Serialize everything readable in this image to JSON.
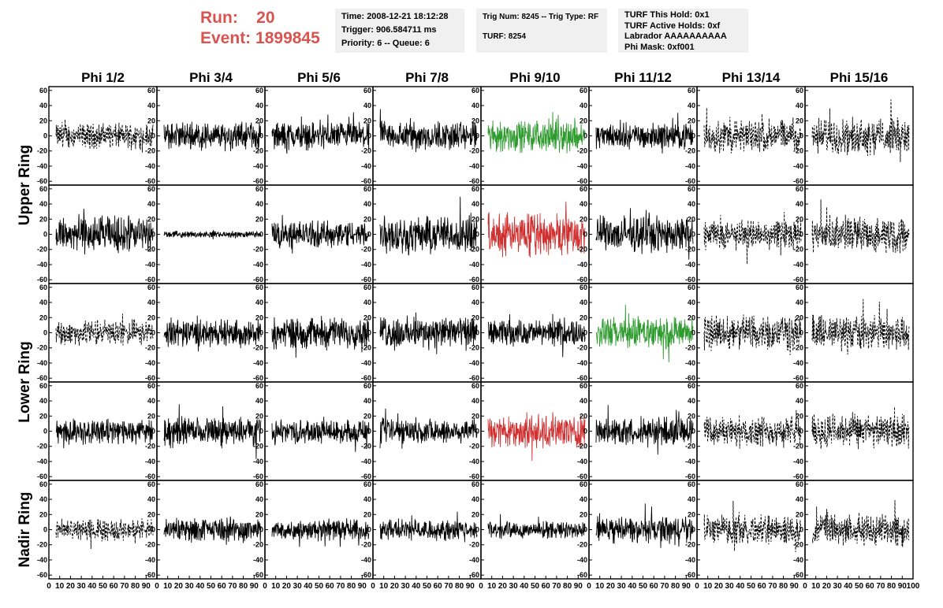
{
  "header": {
    "run_label": "Run:",
    "run_value": "20",
    "event_label": "Event:",
    "event_value": "1899845",
    "time": "Time: 2008-12-21 18:12:28",
    "trigger": "Trigger: 906.584711 ms",
    "priority": "Priority: 6 -- Queue: 6",
    "trig_num": "Trig Num: 8245 -- Trig Type: RF",
    "turf": "TURF: 8254",
    "turf_hold": "TURF This Hold: 0x1",
    "turf_active": "TURF Active Holds: 0xf",
    "labrador": "Labrador AAAAAAAAAA",
    "phi_mask": "Phi Mask: 0xf001"
  },
  "chart_data": {
    "type": "line",
    "columns": [
      "Phi 1/2",
      "Phi 3/4",
      "Phi 5/6",
      "Phi 7/8",
      "Phi 9/10",
      "Phi 11/12",
      "Phi 13/14",
      "Phi 15/16"
    ],
    "row_labels": [
      {
        "label": "Upper Ring",
        "rows": [
          0,
          1
        ]
      },
      {
        "label": "Lower Ring",
        "rows": [
          2,
          3
        ]
      },
      {
        "label": "Nadir Ring",
        "rows": [
          4
        ]
      }
    ],
    "xlim": [
      0,
      100
    ],
    "x_ticks": [
      "0",
      "10",
      "20",
      "30",
      "40",
      "50",
      "60",
      "70",
      "80",
      "90",
      "100"
    ],
    "ylim": [
      -65,
      65
    ],
    "y_ticks": [
      -60,
      -40,
      -20,
      0,
      20,
      40,
      60
    ],
    "grid": false,
    "colors": {
      "black": "#000000",
      "green": "#2e9b2e",
      "red": "#d03030"
    },
    "panels": [
      [
        {
          "style": "dashed",
          "color": "black",
          "amp": 12
        },
        {
          "style": "solid",
          "color": "black",
          "amp": 13
        },
        {
          "style": "solid",
          "color": "black",
          "amp": 13
        },
        {
          "style": "solid",
          "color": "black",
          "amp": 14
        },
        {
          "style": "solid",
          "color": "green",
          "amp": 15
        },
        {
          "style": "solid",
          "color": "black",
          "amp": 12
        },
        {
          "style": "dashed",
          "color": "black",
          "amp": 16
        },
        {
          "style": "dashed",
          "color": "black",
          "amp": 17
        }
      ],
      [
        {
          "style": "solid",
          "color": "black",
          "amp": 18
        },
        {
          "style": "solid",
          "color": "black",
          "amp": 3
        },
        {
          "style": "solid",
          "color": "black",
          "amp": 13
        },
        {
          "style": "solid",
          "color": "black",
          "amp": 18
        },
        {
          "style": "solid",
          "color": "red",
          "amp": 20
        },
        {
          "style": "solid",
          "color": "black",
          "amp": 17
        },
        {
          "style": "dashed",
          "color": "black",
          "amp": 14
        },
        {
          "style": "dashed",
          "color": "black",
          "amp": 17
        }
      ],
      [
        {
          "style": "dashed",
          "color": "black",
          "amp": 12
        },
        {
          "style": "solid",
          "color": "black",
          "amp": 13
        },
        {
          "style": "solid",
          "color": "black",
          "amp": 15
        },
        {
          "style": "solid",
          "color": "black",
          "amp": 15
        },
        {
          "style": "solid",
          "color": "black",
          "amp": 12
        },
        {
          "style": "solid",
          "color": "green",
          "amp": 15
        },
        {
          "style": "dashed",
          "color": "black",
          "amp": 17
        },
        {
          "style": "dashed",
          "color": "black",
          "amp": 17
        }
      ],
      [
        {
          "style": "solid",
          "color": "black",
          "amp": 12
        },
        {
          "style": "solid",
          "color": "black",
          "amp": 13
        },
        {
          "style": "solid",
          "color": "black",
          "amp": 11
        },
        {
          "style": "solid",
          "color": "black",
          "amp": 12
        },
        {
          "style": "solid",
          "color": "red",
          "amp": 16
        },
        {
          "style": "solid",
          "color": "black",
          "amp": 13
        },
        {
          "style": "dashed",
          "color": "black",
          "amp": 14
        },
        {
          "style": "dashed",
          "color": "black",
          "amp": 16
        }
      ],
      [
        {
          "style": "dashed",
          "color": "black",
          "amp": 10
        },
        {
          "style": "solid",
          "color": "black",
          "amp": 11
        },
        {
          "style": "solid",
          "color": "black",
          "amp": 10
        },
        {
          "style": "solid",
          "color": "black",
          "amp": 10
        },
        {
          "style": "solid",
          "color": "black",
          "amp": 8
        },
        {
          "style": "solid",
          "color": "black",
          "amp": 12
        },
        {
          "style": "dashed",
          "color": "black",
          "amp": 14
        },
        {
          "style": "dashed",
          "color": "black",
          "amp": 15
        }
      ]
    ]
  }
}
